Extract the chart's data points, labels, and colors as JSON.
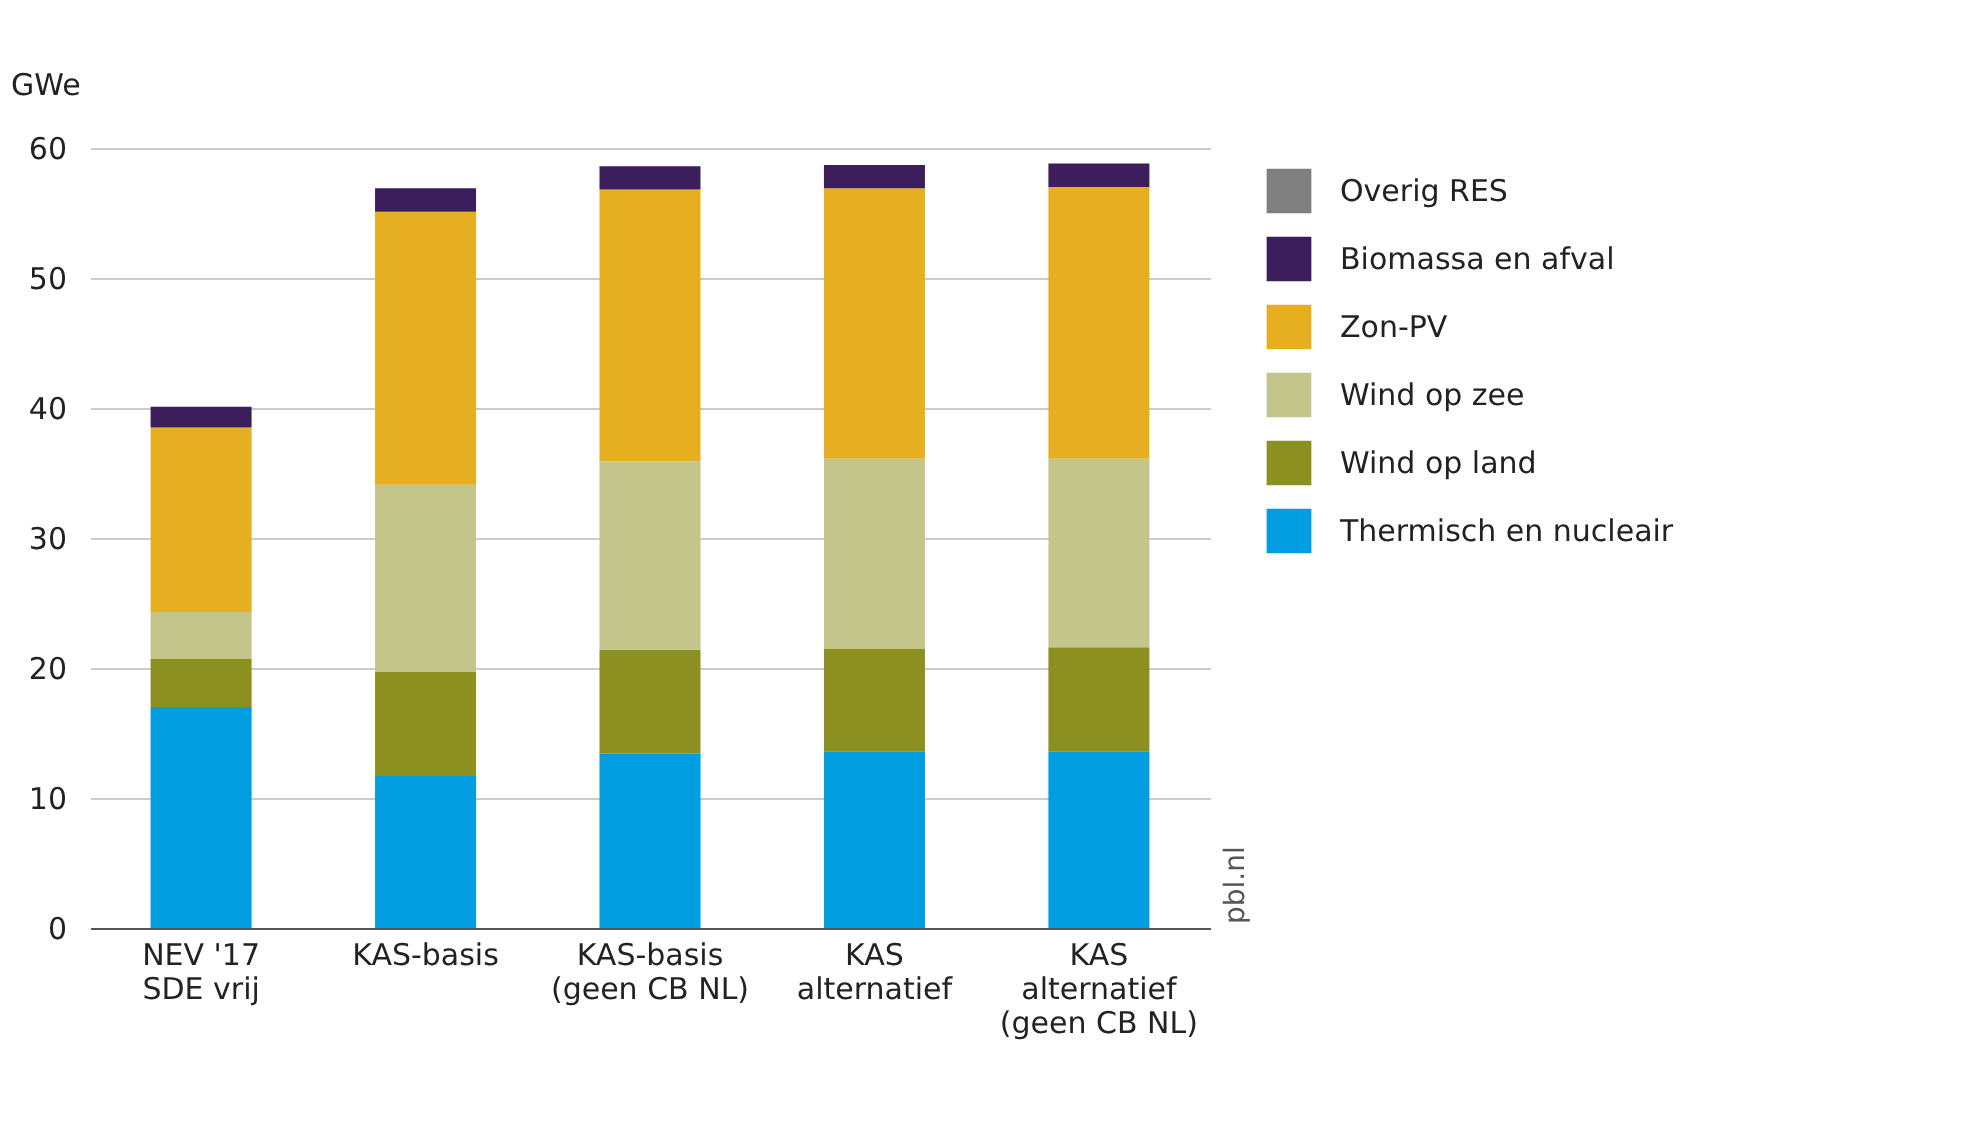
{
  "chart_data": {
    "type": "bar",
    "stacked": true,
    "ylabel": "GWe",
    "categories": [
      "NEV '17\nSDE vrij",
      "KAS-basis",
      "KAS-basis\n(geen CB NL)",
      "KAS\nalternatief",
      "KAS\nalternatief\n(geen CB NL)"
    ],
    "series": [
      {
        "name": "Thermisch en nucleair",
        "color": "#009ee0",
        "values": [
          17.0,
          11.7,
          13.4,
          13.6,
          13.6
        ]
      },
      {
        "name": "Wind op land",
        "color": "#8c9021",
        "values": [
          3.7,
          8.0,
          8.0,
          7.9,
          8.0
        ]
      },
      {
        "name": "Wind op zee",
        "color": "#c4c58b",
        "values": [
          3.6,
          14.4,
          14.5,
          14.6,
          14.5
        ]
      },
      {
        "name": "Zon-PV",
        "color": "#e6ae21",
        "values": [
          14.2,
          21.0,
          20.9,
          20.8,
          20.9
        ]
      },
      {
        "name": "Biomassa en afval",
        "color": "#3c1e5c",
        "values": [
          1.6,
          1.8,
          1.8,
          1.8,
          1.8
        ]
      },
      {
        "name": "Overig RES",
        "color": "#808080",
        "values": [
          0,
          0,
          0,
          0,
          0
        ]
      }
    ],
    "ylim": [
      0,
      60
    ],
    "yticks": [
      0,
      10,
      20,
      30,
      40,
      50,
      60
    ],
    "grid": "y",
    "legend": "top right",
    "annotations": [
      "pbl.nl"
    ]
  }
}
